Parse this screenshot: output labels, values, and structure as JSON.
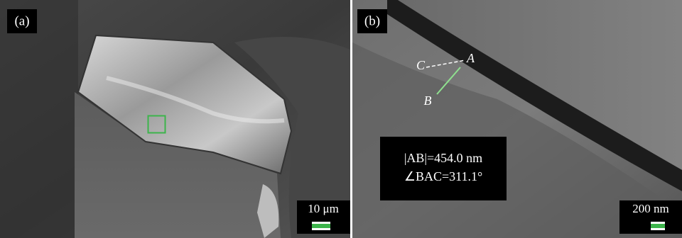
{
  "panels": [
    {
      "label": "(a)",
      "scale_bar": "10 μm"
    },
    {
      "label": "(b)",
      "scale_bar": "200 nm",
      "points": {
        "a": "A",
        "b": "B",
        "c": "C"
      },
      "measurement": [
        "|AB|=454.0 nm",
        "∠BAC=311.1°"
      ]
    }
  ]
}
